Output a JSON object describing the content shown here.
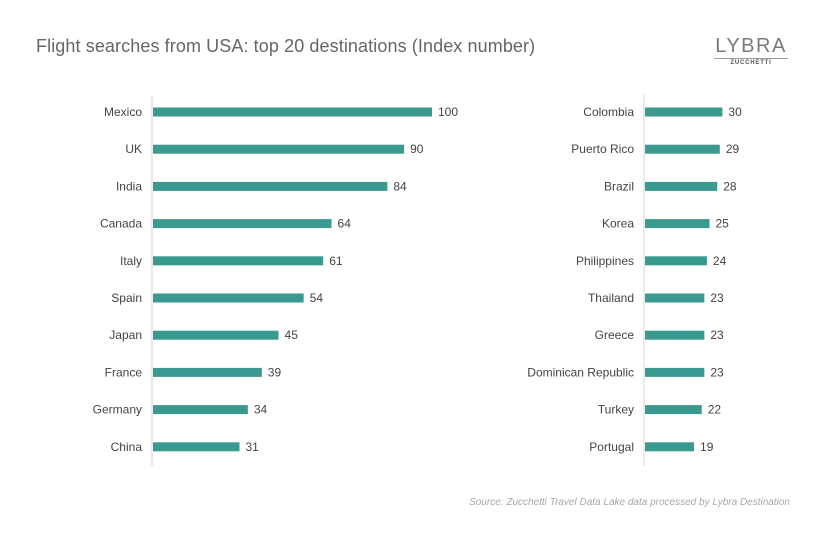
{
  "title": "Flight searches from USA: top 20 destinations (Index number)",
  "logo": {
    "main": "LYBRA",
    "sub": "ZUCCHETTI"
  },
  "source": "Source: Zucchetti Travel Data Lake data processed by Lybra Destination",
  "colors": {
    "bar": "#3a9a8f",
    "axis": "#d4d4d4",
    "text": "#444444",
    "title": "#666666"
  },
  "chart_data": [
    {
      "type": "bar",
      "orientation": "horizontal",
      "title": "",
      "categories": [
        "Mexico",
        "UK",
        "India",
        "Canada",
        "Italy",
        "Spain",
        "Japan",
        "France",
        "Germany",
        "China"
      ],
      "values": [
        100,
        90,
        84,
        64,
        61,
        54,
        45,
        39,
        34,
        31
      ],
      "xlim": [
        0,
        100
      ],
      "grid": false,
      "legend": "none"
    },
    {
      "type": "bar",
      "orientation": "horizontal",
      "title": "",
      "categories": [
        "Colombia",
        "Puerto Rico",
        "Brazil",
        "Korea",
        "Philippines",
        "Thailand",
        "Greece",
        "Dominican Republic",
        "Turkey",
        "Portugal"
      ],
      "values": [
        30,
        29,
        28,
        25,
        24,
        23,
        23,
        23,
        22,
        19
      ],
      "xlim": [
        0,
        100
      ],
      "grid": false,
      "legend": "none"
    }
  ]
}
